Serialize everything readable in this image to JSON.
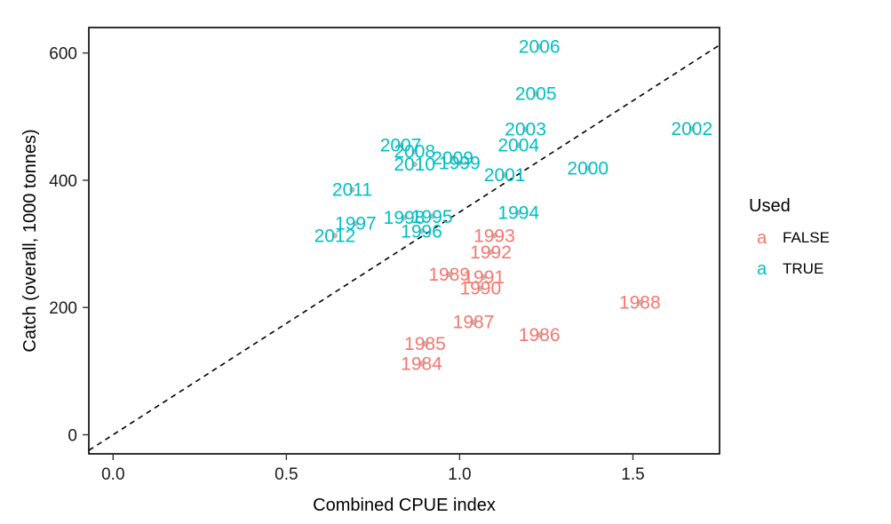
{
  "chart_data": {
    "type": "scatter",
    "xlabel": "Combined CPUE index",
    "ylabel": "Catch (overall, 1000 tonnes)",
    "xlim": [
      -0.07,
      1.75
    ],
    "ylim": [
      -30,
      640
    ],
    "x_ticks": [
      0.0,
      0.5,
      1.0,
      1.5
    ],
    "x_tick_labels": [
      "0.0",
      "0.5",
      "1.0",
      "1.5"
    ],
    "y_ticks": [
      0,
      200,
      400,
      600
    ],
    "y_tick_labels": [
      "0",
      "200",
      "400",
      "600"
    ],
    "reference_line": {
      "style": "dashed",
      "slope": 350,
      "intercept": 0
    },
    "grid": false,
    "legend": {
      "title": "Used",
      "position": "right",
      "entries": [
        {
          "key": "a",
          "label": "FALSE",
          "color": "#F8766D"
        },
        {
          "key": "a",
          "label": "TRUE",
          "color": "#00BFC4"
        }
      ]
    },
    "point_color": "#BDBDBD",
    "series": [
      {
        "name": "FALSE",
        "color": "#F8766D",
        "points": [
          {
            "label": "1984",
            "x": 0.89,
            "y": 112
          },
          {
            "label": "1985",
            "x": 0.9,
            "y": 143
          },
          {
            "label": "1986",
            "x": 1.23,
            "y": 157
          },
          {
            "label": "1987",
            "x": 1.04,
            "y": 177
          },
          {
            "label": "1988",
            "x": 1.52,
            "y": 208
          },
          {
            "label": "1989",
            "x": 0.97,
            "y": 252
          },
          {
            "label": "1990",
            "x": 1.06,
            "y": 230
          },
          {
            "label": "1991",
            "x": 1.07,
            "y": 248
          },
          {
            "label": "1992",
            "x": 1.09,
            "y": 287
          },
          {
            "label": "1993",
            "x": 1.1,
            "y": 313
          }
        ]
      },
      {
        "name": "TRUE",
        "color": "#00BFC4",
        "points": [
          {
            "label": "1994",
            "x": 1.17,
            "y": 349
          },
          {
            "label": "1995",
            "x": 0.92,
            "y": 343
          },
          {
            "label": "1996",
            "x": 0.89,
            "y": 320
          },
          {
            "label": "1997",
            "x": 0.7,
            "y": 332
          },
          {
            "label": "1998",
            "x": 0.84,
            "y": 341
          },
          {
            "label": "1999",
            "x": 1.0,
            "y": 427
          },
          {
            "label": "2000",
            "x": 1.37,
            "y": 419
          },
          {
            "label": "2001",
            "x": 1.13,
            "y": 408
          },
          {
            "label": "2002",
            "x": 1.67,
            "y": 481
          },
          {
            "label": "2003",
            "x": 1.19,
            "y": 480
          },
          {
            "label": "2004",
            "x": 1.17,
            "y": 455
          },
          {
            "label": "2005",
            "x": 1.22,
            "y": 536
          },
          {
            "label": "2006",
            "x": 1.23,
            "y": 610
          },
          {
            "label": "2007",
            "x": 0.83,
            "y": 455
          },
          {
            "label": "2008",
            "x": 0.87,
            "y": 445
          },
          {
            "label": "2009",
            "x": 0.98,
            "y": 435
          },
          {
            "label": "2010",
            "x": 0.87,
            "y": 425
          },
          {
            "label": "2011",
            "x": 0.69,
            "y": 385
          },
          {
            "label": "2012",
            "x": 0.64,
            "y": 313
          }
        ]
      }
    ]
  }
}
